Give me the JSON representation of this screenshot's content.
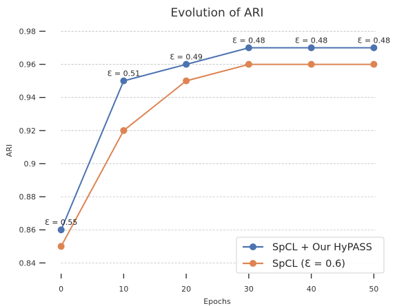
{
  "chart_data": {
    "type": "line",
    "title": "Evolution of ARI",
    "xlabel": "Epochs",
    "ylabel": "ARI",
    "x": [
      0,
      10,
      20,
      30,
      40,
      50
    ],
    "xlim": [
      -2.5,
      52.5
    ],
    "ylim": [
      0.8335,
      0.9835
    ],
    "xticks": [
      0,
      10,
      20,
      30,
      40,
      50
    ],
    "yticks": [
      0.84,
      0.86,
      0.88,
      0.9,
      0.92,
      0.94,
      0.96,
      0.98
    ],
    "ytick_labels": [
      "0.84",
      "0.86",
      "0.88",
      "0.9",
      "0.92",
      "0.94",
      "0.96",
      "0.98"
    ],
    "grid": "horizontal",
    "legend_position": "bottom-right",
    "series": [
      {
        "name": "SpCL + Our HyPASS",
        "color": "#4c72b0",
        "values": [
          0.86,
          0.95,
          0.96,
          0.97,
          0.97,
          0.97
        ]
      },
      {
        "name": "SpCL (Ɛ = 0.6)",
        "color": "#dd8452",
        "values": [
          0.85,
          0.92,
          0.95,
          0.96,
          0.96,
          0.96
        ]
      }
    ],
    "annotations": [
      {
        "x": 0,
        "y": 0.86,
        "text": "Ɛ = 0.55"
      },
      {
        "x": 10,
        "y": 0.95,
        "text": "Ɛ = 0.51"
      },
      {
        "x": 20,
        "y": 0.96,
        "text": "Ɛ = 0.49"
      },
      {
        "x": 30,
        "y": 0.97,
        "text": "Ɛ = 0.48"
      },
      {
        "x": 40,
        "y": 0.97,
        "text": "Ɛ = 0.48"
      },
      {
        "x": 50,
        "y": 0.97,
        "text": "Ɛ = 0.48"
      }
    ]
  }
}
